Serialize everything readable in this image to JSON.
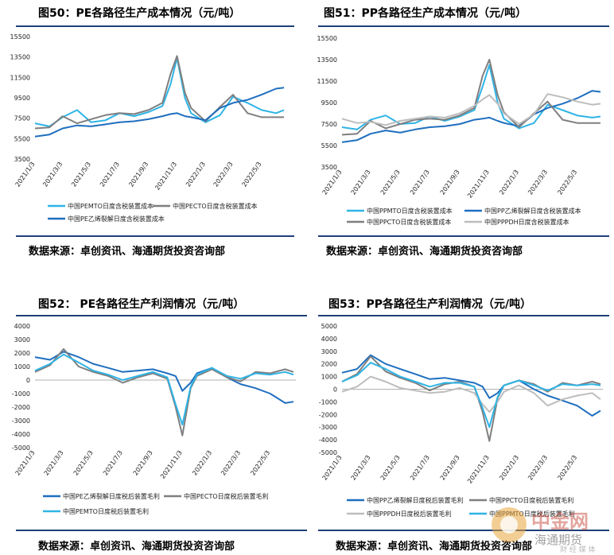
{
  "source_label": "数据来源：卓创资讯、海通期货投资咨询部",
  "watermark": {
    "brand": "中金网",
    "sub": "海通期货",
    "sub2": "财 经 媒 体"
  },
  "colors": {
    "rule": "#1f3f7a",
    "dark_blue": "#1f6fbf",
    "light_blue": "#2fb4e6",
    "gray": "#7f7f7f",
    "light_gray": "#bdbdbd"
  },
  "x_ticks": [
    "2021/1/3",
    "2021/3/3",
    "2021/5/3",
    "2021/7/3",
    "2021/9/3",
    "2021/11/3",
    "2022/1/3",
    "2022/3/3",
    "2022/5/3"
  ],
  "chart_data": [
    {
      "id": "c50",
      "type": "line",
      "title": "图50：PE各路径生产成本情况（元/吨）",
      "ylim": [
        3500,
        15500
      ],
      "yticks": [
        3500,
        5500,
        7500,
        9500,
        11500,
        13500,
        15500
      ],
      "x": [
        "2021/1/3",
        "2021/2/3",
        "2021/3/3",
        "2021/4/3",
        "2021/5/3",
        "2021/6/3",
        "2021/7/3",
        "2021/8/3",
        "2021/9/3",
        "2021/10/3",
        "2021/10/20",
        "2021/11/3",
        "2021/11/20",
        "2021/12/3",
        "2022/1/3",
        "2022/2/3",
        "2022/3/3",
        "2022/4/3",
        "2022/5/3",
        "2022/6/3",
        "2022/6/20"
      ],
      "series": [
        {
          "name": "中国PEMTO日度含税装置成本",
          "color": "#2fb4e6",
          "values": [
            7000,
            6700,
            7600,
            8300,
            7100,
            7300,
            8000,
            7700,
            8100,
            8700,
            10800,
            13400,
            9500,
            8000,
            7100,
            7800,
            9600,
            9000,
            8300,
            8000,
            8300
          ]
        },
        {
          "name": "中国PECTO日度含税装置成本",
          "color": "#7f7f7f",
          "values": [
            6500,
            6600,
            7700,
            7000,
            7400,
            7800,
            8000,
            7900,
            8300,
            9000,
            11800,
            13600,
            10000,
            8500,
            7200,
            8600,
            9800,
            8000,
            7600,
            7600,
            7600
          ]
        },
        {
          "name": "中国PE乙烯裂解日度含税装置成本",
          "color": "#1f6fbf",
          "values": [
            5700,
            5900,
            6500,
            6800,
            6700,
            6900,
            7100,
            7200,
            7400,
            7700,
            7900,
            8000,
            7700,
            7600,
            7300,
            8500,
            9000,
            9300,
            9800,
            10400,
            10500
          ]
        }
      ]
    },
    {
      "id": "c51",
      "type": "line",
      "title": "图51：PP各路径生产成本情况（元/吨）",
      "ylim": [
        3500,
        15500
      ],
      "yticks": [
        3500,
        5500,
        7500,
        9500,
        11500,
        13500,
        15500
      ],
      "x": [
        "2021/1/3",
        "2021/2/3",
        "2021/3/3",
        "2021/4/3",
        "2021/5/3",
        "2021/6/3",
        "2021/7/3",
        "2021/8/3",
        "2021/9/3",
        "2021/10/3",
        "2021/10/20",
        "2021/11/3",
        "2021/11/20",
        "2021/12/3",
        "2022/1/3",
        "2022/2/3",
        "2022/3/3",
        "2022/4/3",
        "2022/5/3",
        "2022/6/3",
        "2022/6/20"
      ],
      "series": [
        {
          "name": "中国PPMTO日度含税装置成本",
          "color": "#2fb4e6",
          "values": [
            7200,
            7000,
            7900,
            8300,
            7500,
            7600,
            8200,
            7800,
            8200,
            8800,
            11000,
            13000,
            9500,
            8000,
            7100,
            7600,
            9300,
            8800,
            8300,
            8100,
            8200
          ]
        },
        {
          "name": "中国PP乙烯裂解日度含税装置成本",
          "color": "#1f6fbf",
          "values": [
            5800,
            6000,
            6600,
            6900,
            6700,
            7000,
            7200,
            7300,
            7500,
            7900,
            8000,
            8100,
            7800,
            7600,
            7300,
            8400,
            9000,
            9400,
            9900,
            10600,
            10500
          ]
        },
        {
          "name": "中国PPCTO日度含税装置成本",
          "color": "#7f7f7f",
          "values": [
            6500,
            6600,
            7800,
            7100,
            7500,
            7900,
            8000,
            7900,
            8300,
            9000,
            12000,
            13500,
            10200,
            8600,
            7200,
            8500,
            9600,
            7900,
            7600,
            7600,
            7600
          ]
        },
        {
          "name": "中国PPPDH日度含税装置成本",
          "color": "#bdbdbd",
          "values": [
            8000,
            7600,
            7700,
            7400,
            7800,
            8000,
            8200,
            8100,
            8500,
            9200,
            9800,
            10200,
            9400,
            8500,
            7500,
            8400,
            10300,
            10000,
            9600,
            9300,
            9400
          ]
        }
      ]
    },
    {
      "id": "c52",
      "type": "line",
      "title": "图52： PE各路径生产利润情况（元/吨）",
      "ylim": [
        -5000,
        4000
      ],
      "yticks": [
        -5000,
        -4000,
        -3000,
        -2000,
        -1000,
        0,
        1000,
        2000,
        3000,
        4000
      ],
      "x": [
        "2021/1/3",
        "2021/2/3",
        "2021/3/3",
        "2021/4/3",
        "2021/5/3",
        "2021/6/3",
        "2021/7/3",
        "2021/8/3",
        "2021/9/3",
        "2021/10/3",
        "2021/10/20",
        "2021/11/3",
        "2021/11/20",
        "2021/12/3",
        "2022/1/3",
        "2022/2/3",
        "2022/3/3",
        "2022/4/3",
        "2022/5/3",
        "2022/6/3",
        "2022/6/20"
      ],
      "series": [
        {
          "name": "中国PE乙烯裂解日度税后装置毛利",
          "color": "#1f6fbf",
          "values": [
            1700,
            1500,
            2100,
            1700,
            1200,
            900,
            600,
            700,
            800,
            500,
            300,
            -800,
            -200,
            500,
            900,
            200,
            -300,
            -600,
            -1000,
            -1700,
            -1600
          ]
        },
        {
          "name": "中国PECTO日度税后装置毛利",
          "color": "#7f7f7f",
          "values": [
            600,
            1100,
            2300,
            1000,
            600,
            300,
            -200,
            200,
            500,
            100,
            -2000,
            -4100,
            -600,
            300,
            800,
            200,
            -100,
            600,
            500,
            800,
            600
          ]
        },
        {
          "name": "中国PEMTO日度税后装置毛利",
          "color": "#2fb4e6",
          "values": [
            700,
            1200,
            1900,
            1300,
            700,
            400,
            0,
            300,
            600,
            200,
            -1800,
            -3300,
            -500,
            400,
            900,
            300,
            100,
            500,
            400,
            600,
            400
          ]
        }
      ]
    },
    {
      "id": "c53",
      "type": "line",
      "title": "图53：PP各路径生产利润情况（元/吨）",
      "ylim": [
        -5000,
        5000
      ],
      "yticks": [
        -5000,
        -4000,
        -3000,
        -2000,
        -1000,
        0,
        1000,
        2000,
        3000,
        4000,
        5000
      ],
      "x": [
        "2021/1/3",
        "2021/2/3",
        "2021/3/3",
        "2021/4/3",
        "2021/5/3",
        "2021/6/3",
        "2021/7/3",
        "2021/8/3",
        "2021/9/3",
        "2021/10/3",
        "2021/10/20",
        "2021/11/3",
        "2021/11/20",
        "2021/12/3",
        "2022/1/3",
        "2022/2/3",
        "2022/3/3",
        "2022/4/3",
        "2022/5/3",
        "2022/6/3",
        "2022/6/20"
      ],
      "series": [
        {
          "name": "中国PP乙烯裂解日度税后装置毛利",
          "color": "#1f6fbf",
          "values": [
            1300,
            1600,
            2700,
            2000,
            1600,
            1200,
            800,
            900,
            700,
            500,
            200,
            -700,
            -300,
            300,
            700,
            0,
            -500,
            -900,
            -1300,
            -2100,
            -1700
          ]
        },
        {
          "name": "中国PPCTO日度税后装置毛利",
          "color": "#7f7f7f",
          "values": [
            600,
            1200,
            2600,
            1400,
            900,
            500,
            -100,
            400,
            600,
            200,
            -1800,
            -4100,
            -700,
            300,
            700,
            400,
            -200,
            500,
            300,
            600,
            400
          ]
        },
        {
          "name": "中国PPPDH日度税后装置毛利",
          "color": "#bdbdbd",
          "values": [
            -200,
            200,
            1000,
            600,
            100,
            -100,
            -300,
            -200,
            100,
            -300,
            -1200,
            -1800,
            -1000,
            -200,
            300,
            -300,
            -1300,
            -800,
            -500,
            -300,
            -800
          ]
        },
        {
          "name": "中国PPMTO日度税后装置毛利",
          "color": "#2fb4e6",
          "values": [
            600,
            1100,
            2100,
            1600,
            1000,
            600,
            200,
            500,
            500,
            200,
            -1500,
            -3000,
            -600,
            300,
            700,
            300,
            -100,
            400,
            300,
            400,
            300
          ]
        }
      ]
    }
  ]
}
